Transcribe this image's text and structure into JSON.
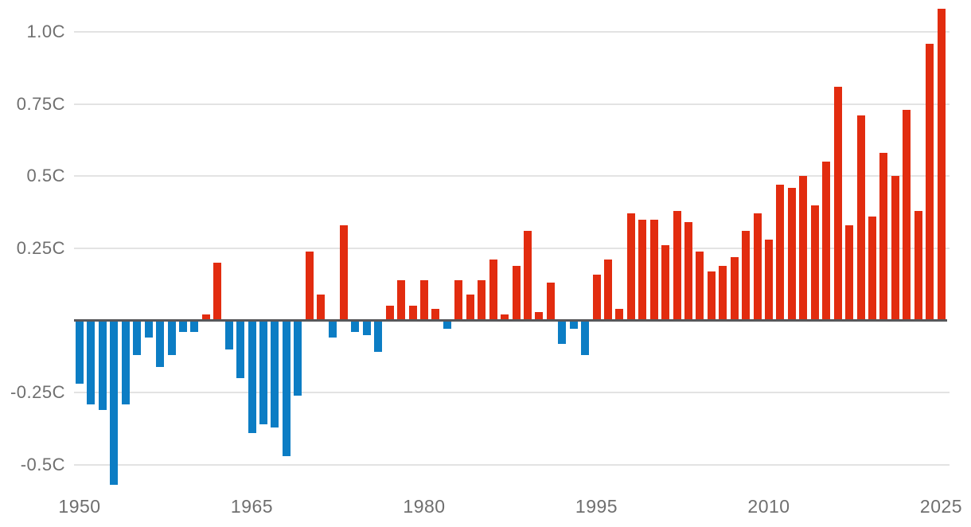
{
  "chart_data": {
    "type": "bar",
    "title": "",
    "xlabel": "",
    "ylabel": "",
    "unit": "C",
    "grid": true,
    "legend": false,
    "ylim": [
      -0.62,
      1.1
    ],
    "x": [
      1950,
      1951,
      1952,
      1953,
      1954,
      1955,
      1956,
      1957,
      1958,
      1959,
      1960,
      1961,
      1962,
      1963,
      1964,
      1965,
      1966,
      1967,
      1968,
      1969,
      1970,
      1971,
      1972,
      1973,
      1974,
      1975,
      1976,
      1977,
      1978,
      1979,
      1980,
      1981,
      1982,
      1983,
      1984,
      1985,
      1986,
      1987,
      1988,
      1989,
      1990,
      1991,
      1992,
      1993,
      1994,
      1995,
      1996,
      1997,
      1998,
      1999,
      2000,
      2001,
      2002,
      2003,
      2004,
      2005,
      2006,
      2007,
      2008,
      2009,
      2010,
      2011,
      2012,
      2013,
      2014,
      2015,
      2016,
      2017,
      2018,
      2019,
      2020,
      2021,
      2022,
      2023,
      2024,
      2025
    ],
    "values": [
      -0.22,
      -0.29,
      -0.31,
      -0.57,
      -0.29,
      -0.12,
      -0.06,
      -0.16,
      -0.12,
      -0.04,
      -0.04,
      0.02,
      0.2,
      -0.1,
      -0.2,
      -0.39,
      -0.36,
      -0.37,
      -0.47,
      -0.26,
      0.24,
      0.09,
      -0.06,
      0.33,
      -0.04,
      -0.05,
      -0.11,
      0.05,
      0.14,
      0.05,
      0.14,
      0.04,
      -0.03,
      0.14,
      0.09,
      0.14,
      0.21,
      0.02,
      0.19,
      0.31,
      0.03,
      0.13,
      -0.08,
      -0.03,
      -0.12,
      0.16,
      0.21,
      0.04,
      0.37,
      0.35,
      0.35,
      0.26,
      0.38,
      0.34,
      0.24,
      0.17,
      0.19,
      0.22,
      0.31,
      0.37,
      0.28,
      0.47,
      0.46,
      0.5,
      0.4,
      0.55,
      0.81,
      0.33,
      0.71,
      0.36,
      0.58,
      0.5,
      0.73,
      0.38,
      0.96,
      1.08
    ],
    "y_ticks": [
      {
        "value": 1.0,
        "label": "1.0C"
      },
      {
        "value": 0.75,
        "label": "0.75C"
      },
      {
        "value": 0.5,
        "label": "0.5C"
      },
      {
        "value": 0.25,
        "label": "0.25C"
      },
      {
        "value": -0.25,
        "label": "-0.25C"
      },
      {
        "value": -0.5,
        "label": "-0.5C"
      }
    ],
    "x_ticks": [
      {
        "value": 1950,
        "label": "1950"
      },
      {
        "value": 1965,
        "label": "1965"
      },
      {
        "value": 1980,
        "label": "1980"
      },
      {
        "value": 1995,
        "label": "1995"
      },
      {
        "value": 2010,
        "label": "2010"
      },
      {
        "value": 2025,
        "label": "2025"
      }
    ],
    "colors": {
      "positive": "#e22c0f",
      "negative": "#0c7dc4",
      "baseline": "#57575a",
      "gridline": "#e3e3e3",
      "tick_text": "#6f6f6f",
      "background": "#ffffff"
    }
  }
}
